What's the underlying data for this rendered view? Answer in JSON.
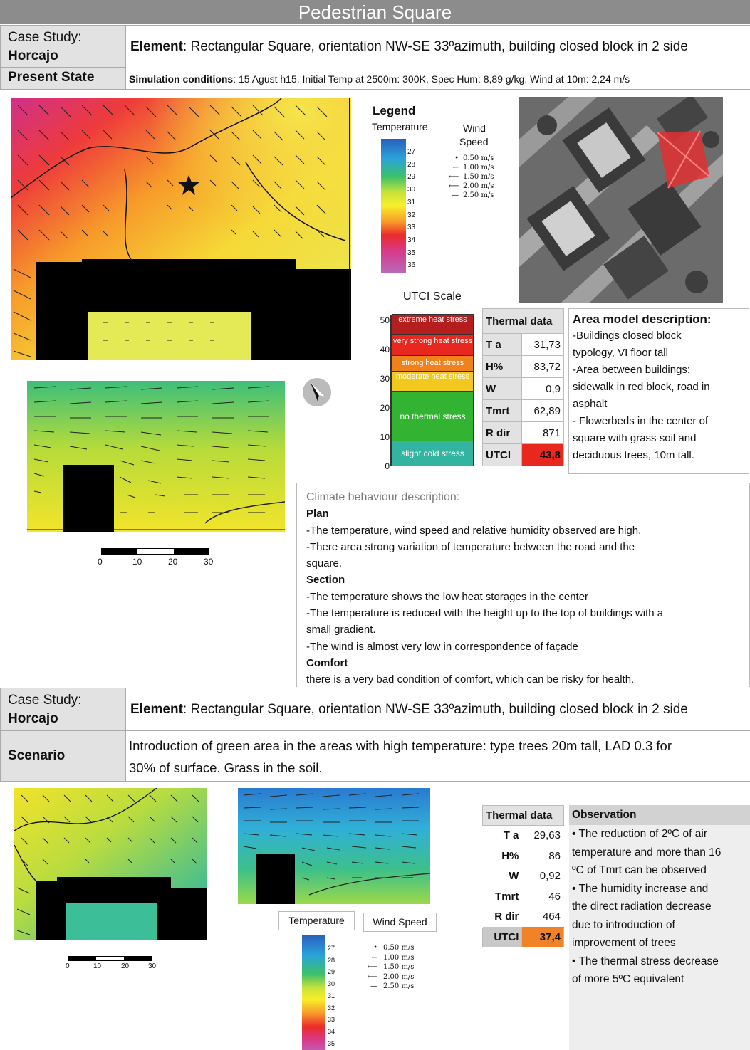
{
  "page_title": "Pedestrian Square",
  "section1": {
    "case_study_label": "Case Study:",
    "case_study_name": "Horcajo",
    "element_label": "Element",
    "element_text": ": Rectangular Square, orientation NW-SE 33ºazimuth, building closed block in 2 side",
    "state_label": "Present State",
    "sim_label": "Simulation conditions",
    "sim_text": ": 15 Agust h15, Initial Temp at 2500m: 300K, Spec Hum: 8,89 g/kg, Wind at 10m: 2,24 m/s"
  },
  "legend": {
    "title": "Legend",
    "temperature_label": "Temperature",
    "wind_label_1": "Wind",
    "wind_label_2": "Speed",
    "temp_ticks": [
      "27",
      "28",
      "29",
      "30",
      "31",
      "32",
      "33",
      "34",
      "35",
      "36"
    ],
    "wind_ticks": [
      "0.50 m/s",
      "1.00 m/s",
      "1.50 m/s",
      "2.00 m/s",
      "2.50 m/s"
    ]
  },
  "utci": {
    "title": "UTCI Scale",
    "axis_ticks": [
      "50",
      "40",
      "30",
      "20",
      "10",
      "0"
    ],
    "bands": [
      {
        "label": "extreme heat stress",
        "color": "#b41e1e"
      },
      {
        "label": "very strong heat stress",
        "color": "#e8281e"
      },
      {
        "label": "strong heat stress",
        "color": "#f0821e"
      },
      {
        "label": "moderate heat stress",
        "color": "#f0c81e"
      },
      {
        "label": "no thermal stress",
        "color": "#32b432"
      },
      {
        "label": "slight cold stress",
        "color": "#32b4a0"
      }
    ]
  },
  "thermal1": {
    "header": "Thermal data",
    "rows": [
      {
        "label": "T a",
        "value": "31,73"
      },
      {
        "label": "H%",
        "value": "83,72"
      },
      {
        "label": "W",
        "value": "0,9"
      },
      {
        "label": "Tmrt",
        "value": "62,89"
      },
      {
        "label": "R dir",
        "value": "871"
      },
      {
        "label": "UTCI",
        "value": "43,8"
      }
    ],
    "utci_color": "#e8281e"
  },
  "area_model": {
    "title": "Area model description:",
    "lines": [
      "-Buildings closed block",
      "typology, VI floor tall",
      "-Area between buildings:",
      "sidewalk in red block, road in",
      "asphalt",
      "- Flowerbeds in the center of",
      "square with grass soil and",
      "deciduous trees, 10m tall."
    ]
  },
  "scale_bar": {
    "ticks": [
      "0",
      "10",
      "20",
      "30"
    ]
  },
  "climate": {
    "title": "Climate behaviour description:",
    "plan_heading": "Plan",
    "plan_lines": [
      "-The temperature,  wind speed and relative humidity observed are high.",
      "-There area strong variation of temperature between  the road and the",
      "square."
    ],
    "section_heading": "Section",
    "section_lines": [
      "-The temperature shows the low heat storages in the center",
      "-The temperature is reduced with the height up to the top of buildings with a",
      "small gradient.",
      "-The wind is almost very low in correspondence of façade"
    ],
    "comfort_heading": "Comfort",
    "comfort_lines": [
      "there is a very bad condition of comfort, which can be risky for health."
    ]
  },
  "section2": {
    "case_study_label": "Case Study:",
    "case_study_name": "Horcajo",
    "element_label": "Element",
    "element_text": ": Rectangular Square, orientation NW-SE 33ºazimuth, building closed block in 2 side",
    "scenario_label": "Scenario",
    "scenario_line1": "Introduction of green area in the areas with high temperature: type trees 20m tall, LAD 0.3 for",
    "scenario_line2": "30% of surface. Grass in the soil."
  },
  "legend2": {
    "temperature_label": "Temperature",
    "wind_label": "Wind Speed",
    "temp_ticks": [
      "27",
      "28",
      "29",
      "30",
      "31",
      "32",
      "33",
      "34",
      "35"
    ],
    "wind_ticks": [
      "0.50 m/s",
      "1.00 m/s",
      "1.50 m/s",
      "2.00 m/s",
      "2.50 m/s"
    ]
  },
  "scale_bar2": {
    "ticks": [
      "0",
      "10",
      "20",
      "30"
    ]
  },
  "thermal2": {
    "header": "Thermal data",
    "rows": [
      {
        "label": "T a",
        "value": "29,63"
      },
      {
        "label": "H%",
        "value": "86"
      },
      {
        "label": "W",
        "value": "0,92"
      },
      {
        "label": "Tmrt",
        "value": "46"
      },
      {
        "label": "R dir",
        "value": "464"
      },
      {
        "label": "UTCI",
        "value": "37,4"
      }
    ],
    "utci_color": "#f08228"
  },
  "observation": {
    "title": "Observation",
    "lines": [
      "• The reduction of 2ºC of air",
      "temperature and more than 16",
      "ºC of Tmrt can be observed",
      "• The humidity increase and",
      "the direct radiation decrease",
      "due to introduction of",
      "improvement of trees",
      "• The thermal stress decrease",
      "of more 5ºC equivalent"
    ]
  }
}
